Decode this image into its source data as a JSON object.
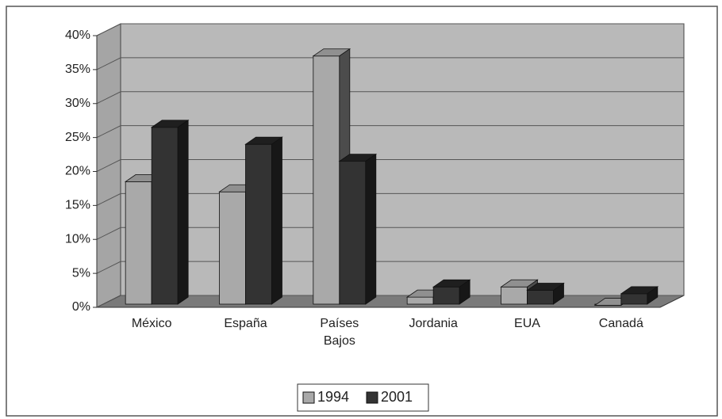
{
  "chart_data": {
    "type": "bar3d",
    "categories": [
      "México",
      "España",
      "Países Bajos",
      "Jordania",
      "EUA",
      "Canadá"
    ],
    "series": [
      {
        "name": "1994",
        "color": "#a9a9a9",
        "values": [
          18.5,
          17,
          37,
          1.5,
          3,
          0.3
        ]
      },
      {
        "name": "2001",
        "color": "#333333",
        "values": [
          26.5,
          24,
          21.5,
          3,
          2.5,
          2
        ]
      }
    ],
    "ylim": [
      0,
      40
    ],
    "yticks": [
      {
        "value": 0,
        "label": "0%"
      },
      {
        "value": 5,
        "label": "5%"
      },
      {
        "value": 10,
        "label": "10%"
      },
      {
        "value": 15,
        "label": "15%"
      },
      {
        "value": 20,
        "label": "20%"
      },
      {
        "value": 25,
        "label": "25%"
      },
      {
        "value": 30,
        "label": "30%"
      },
      {
        "value": 35,
        "label": "35%"
      },
      {
        "value": 40,
        "label": "40%"
      }
    ],
    "grid": true,
    "legend": "bottom"
  }
}
